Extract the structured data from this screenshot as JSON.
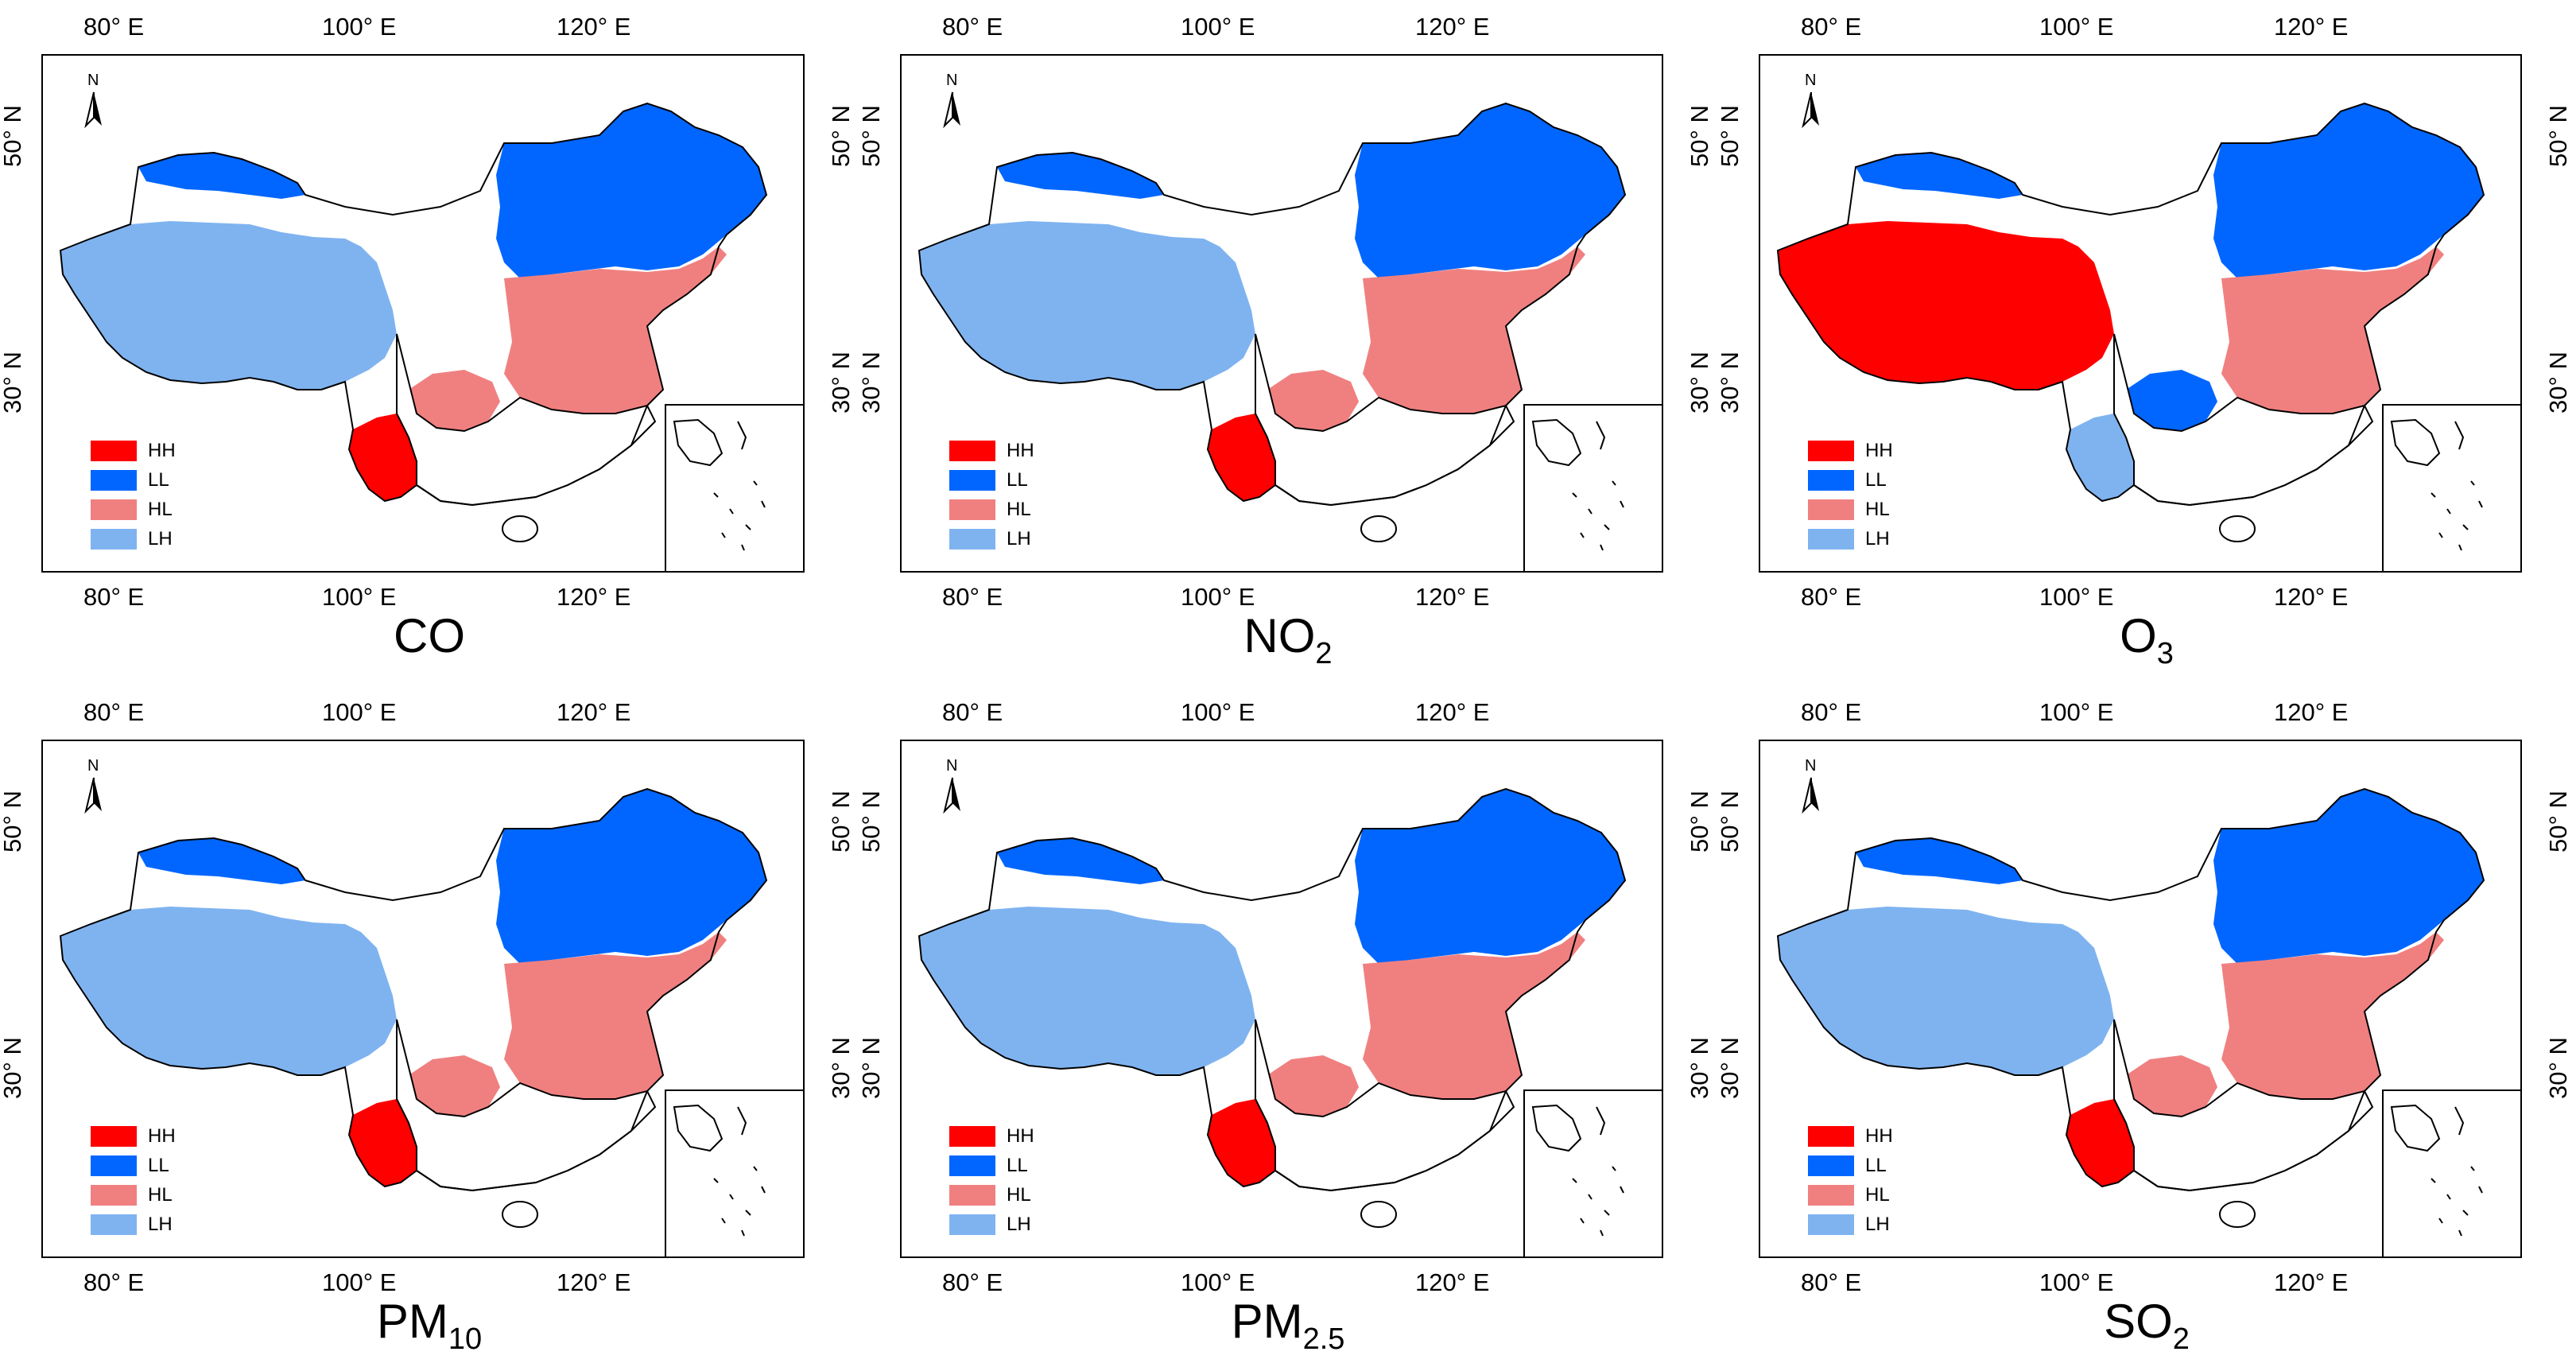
{
  "figure": {
    "lon_ticks": [
      "80° E",
      "100° E",
      "120° E"
    ],
    "lat_ticks": [
      "50° N",
      "30° N"
    ],
    "north_label": "N",
    "legend": [
      {
        "label": "HH",
        "color": "#ff0000"
      },
      {
        "label": "LL",
        "color": "#0066ff"
      },
      {
        "label": "HL",
        "color": "#f08080"
      },
      {
        "label": "LH",
        "color": "#7fb3f0"
      }
    ],
    "panels": [
      {
        "pollutant": "CO",
        "main": "CO",
        "sub": "",
        "dominant": {
          "west": "LH",
          "northwest_strip": "LL",
          "northeast": "LL",
          "east": "HL",
          "sichuan": "HL",
          "southwest": "HH"
        }
      },
      {
        "pollutant": "NO2",
        "main": "NO",
        "sub": "2",
        "dominant": {
          "west": "LH",
          "northwest_strip": "LL",
          "northeast": "LL",
          "east": "HL",
          "sichuan": "HL",
          "southwest": "HH"
        }
      },
      {
        "pollutant": "O3",
        "main": "O",
        "sub": "3",
        "dominant": {
          "west": "HH",
          "northwest_strip": "LL",
          "northeast": "LL",
          "east": "HL",
          "sichuan": "LL",
          "southwest": "LH"
        }
      },
      {
        "pollutant": "PM10",
        "main": "PM",
        "sub": "10",
        "dominant": {
          "west": "LH",
          "northwest_strip": "LL",
          "northeast": "LL",
          "east": "HL",
          "sichuan": "HL",
          "southwest": "HH"
        }
      },
      {
        "pollutant": "PM2.5",
        "main": "PM",
        "sub": "2.5",
        "dominant": {
          "west": "LH",
          "northwest_strip": "LL",
          "northeast": "LL",
          "east": "HL",
          "sichuan": "HL",
          "southwest": "HH"
        }
      },
      {
        "pollutant": "SO2",
        "main": "SO",
        "sub": "2",
        "dominant": {
          "west": "LH",
          "northwest_strip": "LL",
          "northeast": "LL",
          "east": "HL",
          "sichuan": "HL",
          "southwest": "HH"
        }
      }
    ]
  }
}
